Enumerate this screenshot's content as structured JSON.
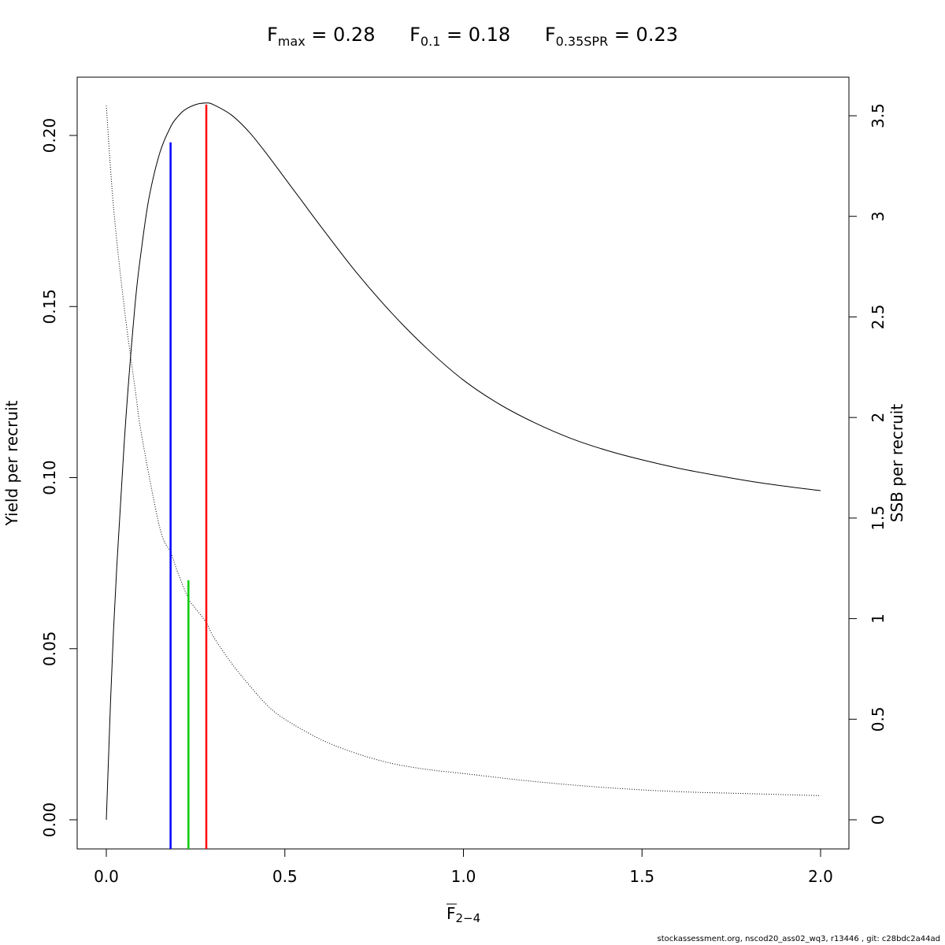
{
  "title": {
    "items": [
      {
        "symbol": "F",
        "sub": "max",
        "rhs": " = 0.28"
      },
      {
        "symbol": "F",
        "sub": "0.1",
        "rhs": " = 0.18"
      },
      {
        "symbol": "F",
        "sub": "0.35SPR",
        "rhs": " = 0.23"
      }
    ]
  },
  "footer": "stockassessment.org, nscod20_ass02_wq3, r13446 , git: c28bdc2a44ad",
  "chart_data": {
    "type": "line",
    "xlabel": {
      "base": "F",
      "sub": "2−4",
      "overline": true
    },
    "ylabel_left": "Yield per recruit",
    "ylabel_right": "SSB per recruit",
    "xlim": [
      0,
      2
    ],
    "ylim_left": [
      0,
      0.21
    ],
    "ylim_right": [
      0,
      3.55
    ],
    "xticks": [
      "0.0",
      "0.5",
      "1.0",
      "1.5",
      "2.0"
    ],
    "xtick_values": [
      0,
      0.5,
      1.0,
      1.5,
      2.0
    ],
    "yticks_left": [
      "0.00",
      "0.05",
      "0.10",
      "0.15",
      "0.20"
    ],
    "ytick_left_values": [
      0,
      0.05,
      0.1,
      0.15,
      0.2
    ],
    "yticks_right": [
      "0",
      "0.5",
      "1",
      "1.5",
      "2",
      "2.5",
      "3",
      "3.5"
    ],
    "ytick_right_values": [
      0,
      0.5,
      1,
      1.5,
      2,
      2.5,
      3,
      3.5
    ],
    "grid": false,
    "series": [
      {
        "axis": "left",
        "style": "solid",
        "color": "#000000",
        "x": [
          0,
          0.02,
          0.05,
          0.08,
          0.1,
          0.12,
          0.15,
          0.18,
          0.2,
          0.22,
          0.25,
          0.28,
          0.3,
          0.35,
          0.4,
          0.45,
          0.5,
          0.55,
          0.6,
          0.7,
          0.8,
          0.9,
          1.0,
          1.1,
          1.2,
          1.3,
          1.4,
          1.5,
          1.6,
          1.7,
          1.8,
          1.9,
          2.0
        ],
        "y": [
          0.0,
          0.055,
          0.11,
          0.15,
          0.168,
          0.182,
          0.195,
          0.2025,
          0.2055,
          0.2075,
          0.209,
          0.2095,
          0.209,
          0.206,
          0.201,
          0.1945,
          0.1875,
          0.1805,
          0.1735,
          0.16,
          0.148,
          0.1375,
          0.1285,
          0.1215,
          0.116,
          0.1115,
          0.108,
          0.1052,
          0.1028,
          0.1008,
          0.099,
          0.0975,
          0.0962
        ]
      },
      {
        "axis": "right",
        "style": "dotted",
        "color": "#000000",
        "x": [
          0,
          0.02,
          0.05,
          0.08,
          0.1,
          0.15,
          0.18,
          0.2,
          0.23,
          0.25,
          0.28,
          0.3,
          0.35,
          0.4,
          0.45,
          0.5,
          0.6,
          0.7,
          0.8,
          0.9,
          1.0,
          1.2,
          1.4,
          1.6,
          1.8,
          2.0
        ],
        "y": [
          3.55,
          3.05,
          2.55,
          2.15,
          1.9,
          1.45,
          1.33,
          1.23,
          1.1,
          1.05,
          0.98,
          0.91,
          0.78,
          0.67,
          0.57,
          0.5,
          0.4,
          0.33,
          0.28,
          0.25,
          0.23,
          0.19,
          0.16,
          0.14,
          0.13,
          0.12
        ]
      }
    ],
    "reference_lines": [
      {
        "name": "F0.1",
        "x": 0.18,
        "y_top": 0.198,
        "axis": "left",
        "color": "#0000ff"
      },
      {
        "name": "F0.35SPR",
        "x": 0.23,
        "y_top": 0.07,
        "axis": "left",
        "color": "#00cc00"
      },
      {
        "name": "Fmax",
        "x": 0.28,
        "y_top": 0.209,
        "axis": "left",
        "color": "#ff0000"
      }
    ]
  }
}
